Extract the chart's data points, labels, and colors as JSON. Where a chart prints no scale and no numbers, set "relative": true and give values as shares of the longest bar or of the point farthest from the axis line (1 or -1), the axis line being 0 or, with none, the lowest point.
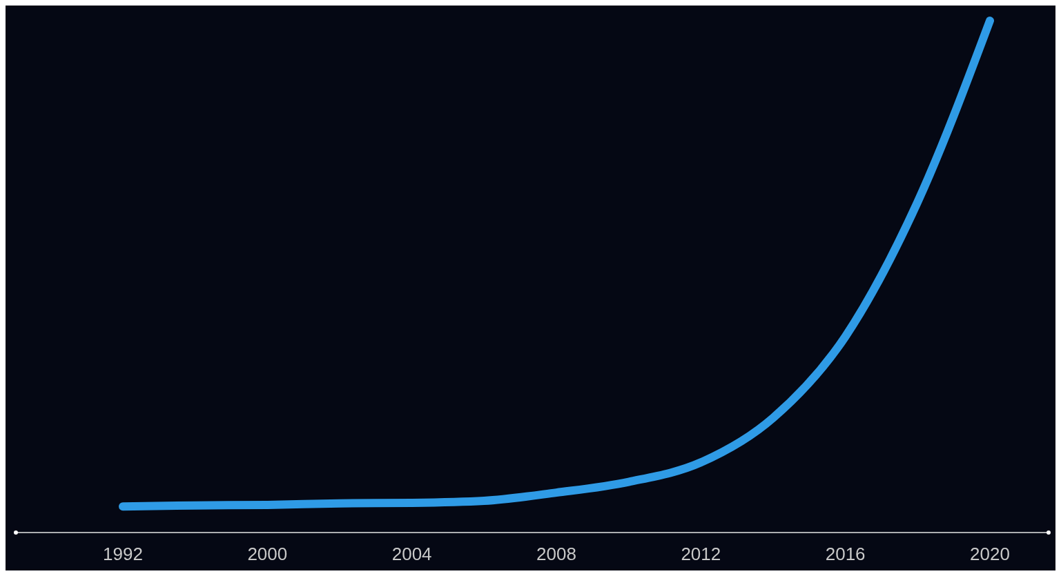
{
  "chart_data": {
    "type": "line",
    "relative": true,
    "categories": [
      "1992",
      null,
      "2000",
      null,
      "2004",
      null,
      "2008",
      null,
      "2012",
      null,
      "2016",
      null,
      "2020"
    ],
    "series": [
      {
        "color": "#2f9be6",
        "values": [
          0.051,
          0.053,
          0.054,
          0.057,
          0.058,
          0.062,
          0.078,
          0.099,
          0.137,
          0.224,
          0.383,
          0.646,
          1
        ]
      }
    ],
    "marker": "none",
    "line_style": "solid"
  }
}
